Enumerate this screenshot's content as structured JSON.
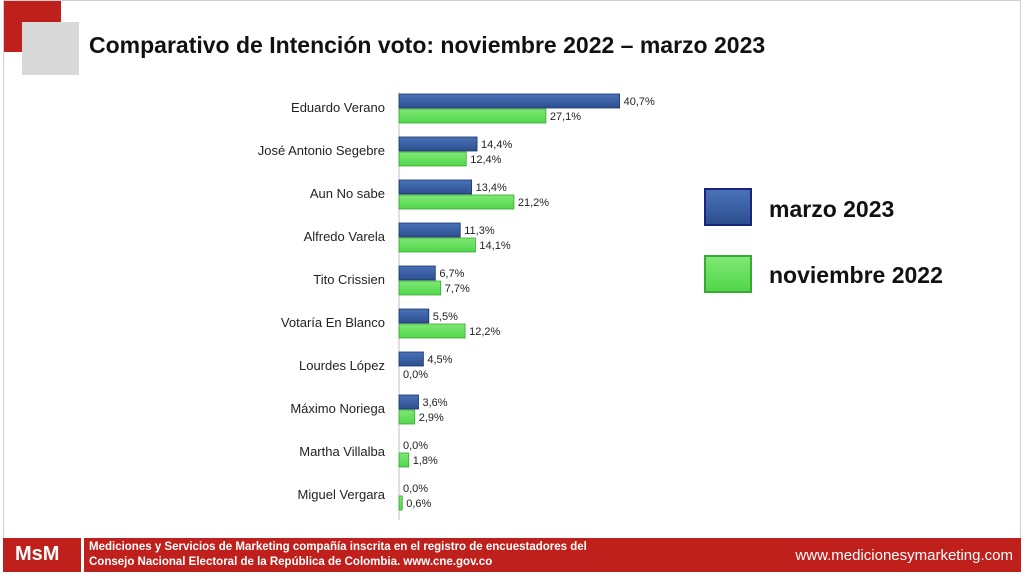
{
  "title": "Comparativo de Intención voto: noviembre 2022 – marzo 2023",
  "colors": {
    "marzo": "#2c4f8f",
    "noviembre": "#52d64a",
    "brand": "#c0201c"
  },
  "chart_data": {
    "type": "bar",
    "orientation": "horizontal",
    "title": "Comparativo de Intención voto: noviembre 2022 – marzo 2023",
    "categories": [
      "Eduardo Verano",
      "José Antonio Segebre",
      "Aun No sabe",
      "Alfredo Varela",
      "Tito Crissien",
      "Votaría En Blanco",
      "Lourdes López",
      "Máximo Noriega",
      "Martha Villalba",
      "Miguel Vergara"
    ],
    "series": [
      {
        "name": "marzo 2023",
        "values": [
          40.7,
          14.4,
          13.4,
          11.3,
          6.7,
          5.5,
          4.5,
          3.6,
          0.0,
          0.0
        ],
        "labels": [
          "40,7%",
          "14,4%",
          "13,4%",
          "11,3%",
          "6,7%",
          "5,5%",
          "4,5%",
          "3,6%",
          "0,0%",
          "0,0%"
        ]
      },
      {
        "name": "noviembre 2022",
        "values": [
          27.1,
          12.4,
          21.2,
          14.1,
          7.7,
          12.2,
          0.0,
          2.9,
          1.8,
          0.6
        ],
        "labels": [
          "27,1%",
          "12,4%",
          "21,2%",
          "14,1%",
          "7,7%",
          "12,2%",
          "0,0%",
          "2,9%",
          "1,8%",
          "0,6%"
        ]
      }
    ],
    "xlim": [
      0,
      50
    ],
    "legend": "right",
    "grid": false
  },
  "legend": {
    "items": [
      "marzo 2023",
      "noviembre 2022"
    ]
  },
  "footer": {
    "logo": "MsM",
    "line1": "Mediciones y Servicios de Marketing compañía inscrita en el registro de encuestadores del",
    "line2": "Consejo Nacional Electoral  de la República de Colombia. www.cne.gov.co",
    "url": "www.medicionesymarketing.com"
  }
}
